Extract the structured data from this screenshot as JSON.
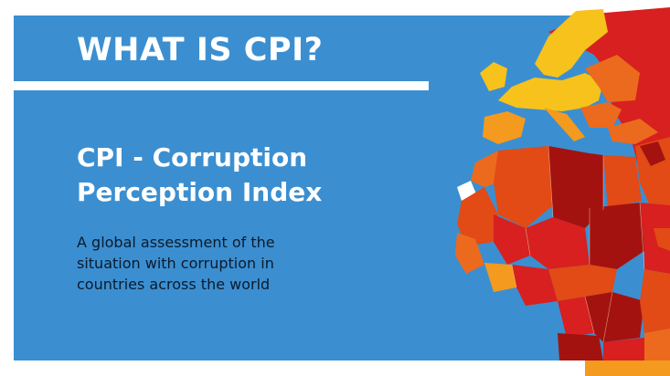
{
  "slide": {
    "heading": "WHAT IS CPI?",
    "title_line1": "CPI - Corruption",
    "title_line2": "Perception Index",
    "description_line1": "A global assessment of the",
    "description_line2": "situation with corruption in",
    "description_line3": "countries across the world"
  },
  "colors": {
    "panel_blue": "#3b8fd1",
    "white": "#ffffff",
    "yellow": "#f7c21b",
    "light_orange": "#f49a1e",
    "orange": "#ec6a1d",
    "red_orange": "#e24a16",
    "red": "#d7201f",
    "dark_red": "#a4120f"
  },
  "map": {
    "icon": "world-map-heatmap"
  }
}
